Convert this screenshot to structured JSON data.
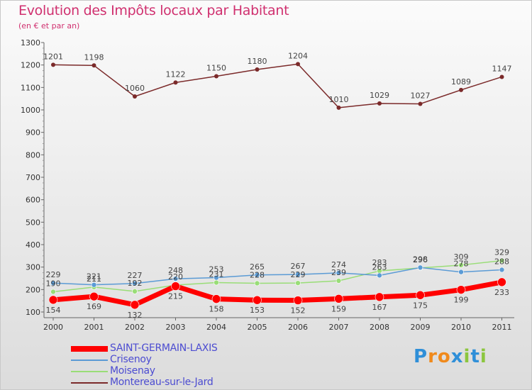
{
  "title": "Evolution des Impôts locaux par Habitant",
  "subtitle": "(en € et par an)",
  "logo": {
    "letters": [
      "P",
      "r",
      "o",
      "x",
      "i",
      "t",
      "i"
    ],
    "colors": [
      "#2f8fd8",
      "#f08a1c",
      "#f08a1c",
      "#2f8fd8",
      "#8cc63f",
      "#2f8fd8",
      "#8cc63f"
    ]
  },
  "chart_data": {
    "type": "line",
    "title": "Evolution des Impôts locaux par Habitant",
    "subtitle": "(en € et par an)",
    "xlabel": "",
    "ylabel": "",
    "x": [
      "2000",
      "2001",
      "2002",
      "2003",
      "2004",
      "2005",
      "2006",
      "2007",
      "2008",
      "2009",
      "2010",
      "2011"
    ],
    "ylim": [
      100,
      1300
    ],
    "yticks": [
      100,
      200,
      300,
      400,
      500,
      600,
      700,
      800,
      900,
      1000,
      1100,
      1200,
      1300
    ],
    "grid": false,
    "legend_position": "bottom-left",
    "series": [
      {
        "name": "SAINT-GERMAIN-LAXIS",
        "color": "#ff0000",
        "values": [
          154,
          169,
          132,
          215,
          158,
          153,
          152,
          159,
          167,
          175,
          199,
          233
        ],
        "labels": [
          "154",
          "169",
          "132",
          "215",
          "158",
          "153",
          "152",
          "159",
          "167",
          "175",
          "199",
          "233"
        ]
      },
      {
        "name": "Crisenoy",
        "color": "#5b9bd5",
        "values": [
          229,
          221,
          227,
          248,
          253,
          265,
          267,
          274,
          263,
          298,
          278,
          288
        ],
        "labels": [
          "229",
          "221",
          "227",
          "248",
          "253",
          "265",
          "267",
          "274",
          "263",
          "298",
          "278",
          "288"
        ]
      },
      {
        "name": "Moisenay",
        "color": "#99dd77",
        "values": [
          190,
          211,
          192,
          220,
          231,
          228,
          229,
          239,
          283,
          296,
          309,
          329
        ],
        "labels": [
          "190",
          "211",
          "192",
          "220",
          "231",
          "228",
          "229",
          "239",
          "283",
          "296",
          "309",
          "329"
        ]
      },
      {
        "name": "Montereau-sur-le-Jard",
        "color": "#7b2a2a",
        "values": [
          1201,
          1198,
          1060,
          1122,
          1150,
          1180,
          1204,
          1010,
          1029,
          1027,
          1089,
          1147
        ],
        "labels": [
          "1201",
          "1198",
          "1060",
          "1122",
          "1150",
          "1180",
          "1204",
          "1010",
          "1029",
          "1027",
          "1089",
          "1147"
        ]
      }
    ]
  }
}
